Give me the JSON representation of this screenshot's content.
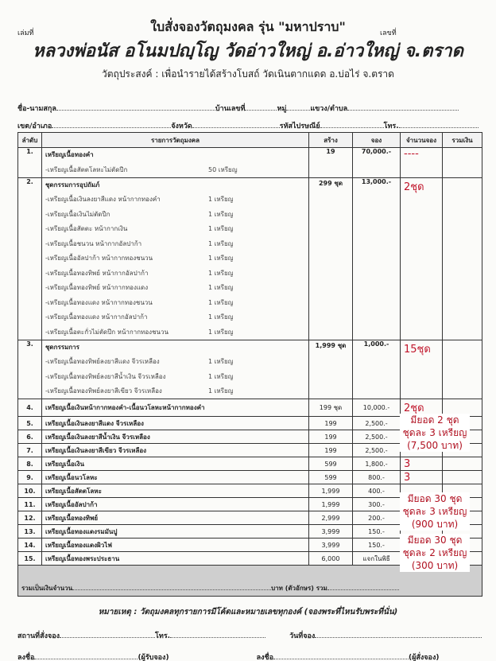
{
  "header": {
    "book_no_label": "เล่มที่",
    "no_label": "เลขที่",
    "title": "ใบสั่งจองวัตถุมงคล รุ่น \"มหาปราบ\"",
    "subtitle": "หลวงพ่อนัส อโนมปญฺโญ วัดอ่าวใหญ่ อ.อ่าวใหญ่ จ.ตราด",
    "purpose": "วัตถุประสงค์ : เพื่อนำรายได้สร้างโบสถ์ วัดเนินตากแดด อ.บ่อไร่ จ.ตราด"
  },
  "form": {
    "name": "ชื่อ-นามสกุล",
    "house_no": "บ้านเลขที่",
    "moo": "หมู่",
    "subdistrict": "แขวง/ตำบล",
    "district": "เขต/อำเภอ",
    "province": "จังหวัด",
    "postcode": "รหัสไปรษณีย์",
    "phone": "โทร."
  },
  "table": {
    "headers": [
      "ลำดับ",
      "รายการวัตถุมงคล",
      "สร้าง",
      "จอง",
      "จำนวนจอง",
      "รวมเงิน"
    ],
    "rows": [
      {
        "no": "1.",
        "item": "เหรียญเนื้อทองคำ",
        "built": "19",
        "price": "70,000.-",
        "qty": "----",
        "subs": [
          [
            "-เหรียญเนื้อสัตตโลหะไม่ตัดปีก",
            "50 เหรียญ"
          ]
        ]
      },
      {
        "no": "2.",
        "item": "ชุดกรรมการอุปถัมภ์",
        "built": "299 ชุด",
        "price": "13,000.-",
        "qty": "2ชุด",
        "subs": [
          [
            "-เหรียญเนื้อเงินลงยาสีแดง หน้ากากทองคำ",
            "1 เหรียญ"
          ],
          [
            "-เหรียญเนื้อเงินไม่ตัดปีก",
            "1 เหรียญ"
          ],
          [
            "-เหรียญเนื้อสัตตะ หน้ากากเงิน",
            "1 เหรียญ"
          ],
          [
            "-เหรียญเนื้อชนวน หน้ากากอัลปาก้า",
            "1 เหรียญ"
          ],
          [
            "-เหรียญเนื้ออัลปาก้า หน้ากากทองชนวน",
            "1 เหรียญ"
          ],
          [
            "-เหรียญเนื้อทองทิพย์ หน้ากากอัลปาก้า",
            "1 เหรียญ"
          ],
          [
            "-เหรียญเนื้อทองทิพย์ หน้ากากทองแดง",
            "1 เหรียญ"
          ],
          [
            "-เหรียญเนื้อทองแดง หน้ากากทองชนวน",
            "1 เหรียญ"
          ],
          [
            "-เหรียญเนื้อทองแดง หน้ากากอัลปาก้า",
            "1 เหรียญ"
          ],
          [
            "-เหรียญเนื้อตะกั่วไม่ตัดปีก หน้ากากทองชนวน",
            "1 เหรียญ"
          ]
        ]
      },
      {
        "no": "3.",
        "item": "ชุดกรรมการ",
        "built": "1,999 ชุด",
        "price": "1,000.-",
        "qty": "15ชุด",
        "subs": [
          [
            "-เหรียญเนื้อทองทิพย์ลงยาสีแดง จีวรเหลือง",
            "1 เหรียญ"
          ],
          [
            "-เหรียญเนื้อทองทิพย์ลงยาสีน้ำเงิน จีวรเหลือง",
            "1 เหรียญ"
          ],
          [
            "-เหรียญเนื้อทองทิพย์ลงยาสีเขียว จีวรเหลือง",
            "1 เหรียญ"
          ]
        ]
      }
    ],
    "single_rows": [
      {
        "no": "4.",
        "item": "เหรียญเนื้อเงินหน้ากากทองคำ-เนื้อนวโลหะหน้ากากทองคำ",
        "built": "199 ชุด",
        "price": "10,000.-",
        "qty": "2ชุด"
      },
      {
        "no": "5.",
        "item": "เหรียญเนื้อเงินลงยาสีแดง จีวรเหลือง",
        "built": "199",
        "price": "2,500.-",
        "qty": ""
      },
      {
        "no": "6.",
        "item": "เหรียญเนื้อเงินลงยาสีน้ำเงิน จีวรเหลือง",
        "built": "199",
        "price": "2,500.-",
        "qty": ""
      },
      {
        "no": "7.",
        "item": "เหรียญเนื้อเงินลงยาสีเขียว จีวรเหลือง",
        "built": "199",
        "price": "2,500.-",
        "qty": ""
      },
      {
        "no": "8.",
        "item": "เหรียญเนื้อเงิน",
        "built": "599",
        "price": "1,800.-",
        "qty": "3"
      },
      {
        "no": "9.",
        "item": "เหรียญเนื้อนวโลหะ",
        "built": "599",
        "price": "800.-",
        "qty": "3"
      },
      {
        "no": "10.",
        "item": "เหรียญเนื้อสัตตโลหะ",
        "built": "1,999",
        "price": "400.-",
        "qty": ""
      },
      {
        "no": "11.",
        "item": "เหรียญเนื้ออัลปาก้า",
        "built": "1,999",
        "price": "300.-",
        "qty": ""
      },
      {
        "no": "12.",
        "item": "เหรียญเนื้อทองทิพย์",
        "built": "2,999",
        "price": "200.-",
        "qty": ""
      },
      {
        "no": "13.",
        "item": "เหรียญเนื้อทองแดงรมมันปู",
        "built": "3,999",
        "price": "150.-",
        "qty": ""
      },
      {
        "no": "14.",
        "item": "เหรียญเนื้อทองแดงผิวไฟ",
        "built": "3,999",
        "price": "150.-",
        "qty": ""
      },
      {
        "no": "15.",
        "item": "เหรียญเนื้อทองพระประธาน",
        "built": "6,000",
        "price": "แจกในพิธี",
        "qty": ""
      }
    ],
    "total_label": "รวมเป็นเงินจำนวน",
    "total_words": "บาท (ตัวอักษร)",
    "total_sum": "รวม"
  },
  "annotations": [
    {
      "lines": [
        "มียอด 2 ชุด",
        "ชุดละ 3 เหรียญ",
        "(7,500 บาท)"
      ]
    },
    {
      "lines": [
        "มียอด 30 ชุด",
        "ชุดละ 3 เหรียญ",
        "(900 บาท)"
      ]
    },
    {
      "lines": [
        "มียอด 30 ชุด",
        "ชุดละ 2 เหรียญ",
        "(300 บาท)"
      ]
    }
  ],
  "note": "หมายเหตุ : วัตถุมงคลทุกรายการมีโค้ดและหมายเลขทุกองค์ (จองพระที่ไหนรับพระที่นั่น)",
  "footer": {
    "place": "สถานที่สั่งจอง",
    "phone": "โทร.",
    "date": "วันที่จอง",
    "sign": "ลงชื่อ",
    "receiver": "(ผู้รับจอง)",
    "orderer": "(ผู้สั่งจอง)"
  },
  "colors": {
    "handwriting_red": "#c0142a",
    "total_row": "#cfcfcf"
  }
}
